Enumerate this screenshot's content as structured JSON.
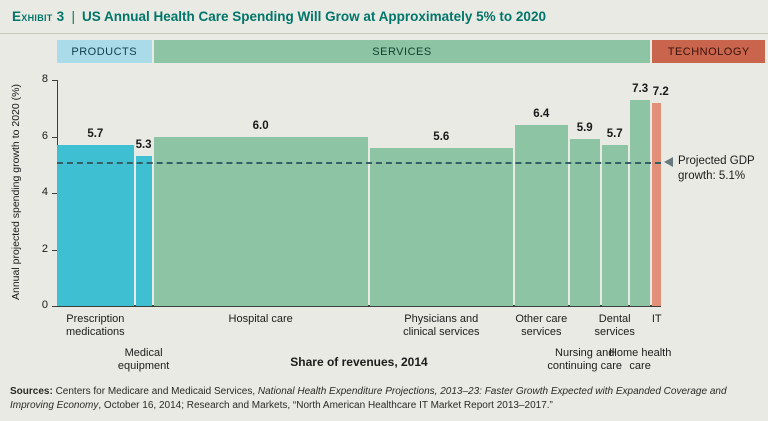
{
  "header": {
    "exhibit_label": "Exhibit 3",
    "separator": "|",
    "title": "US Annual Health Care Spending Will Grow at Approximately 5% to 2020"
  },
  "bands": [
    {
      "label": "PRODUCTS",
      "color": "#a9dbe9",
      "text_color": "#123c4a"
    },
    {
      "label": "SERVICES",
      "color": "#8cc4a4",
      "text_color": "#14402e"
    },
    {
      "label": "TECHNOLOGY",
      "color": "#c8654c",
      "text_color": "#3d120a"
    }
  ],
  "chart_data": {
    "type": "bar",
    "title": "US Annual Health Care Spending Will Grow at Approximately 5% to 2020",
    "ylabel": "Annual projected spending growth to 2020 (%)",
    "xlabel": "Share of revenues, 2014",
    "ylim": [
      0,
      8
    ],
    "yticks": [
      0,
      2,
      4,
      6,
      8
    ],
    "grid": false,
    "legend": "none",
    "reference_line": {
      "value": 5.1,
      "label_line1": "Projected GDP",
      "label_line2": "growth: 5.1%"
    },
    "colors": {
      "products": "#3fc0d2",
      "services": "#8cc4a4",
      "technology": "#e29078"
    },
    "bars": [
      {
        "category": "Prescription medications",
        "value": 5.7,
        "value_label": "5.7",
        "share_pct": 12.6,
        "group": "products",
        "label_row": 1,
        "label_width": 90
      },
      {
        "category": "Medical equipment",
        "value": 5.3,
        "value_label": "5.3",
        "share_pct": 2.6,
        "group": "products",
        "label_row": 2,
        "label_width": 70
      },
      {
        "category": "Hospital care",
        "value": 6.0,
        "value_label": "6.0",
        "share_pct": 35.2,
        "group": "services",
        "label_row": 1,
        "label_width": 120
      },
      {
        "category": "Physicians and clinical services",
        "value": 5.6,
        "value_label": "5.6",
        "share_pct": 23.5,
        "group": "services",
        "label_row": 1,
        "label_width": 95
      },
      {
        "category": "Other care services",
        "value": 6.4,
        "value_label": "6.4",
        "share_pct": 8.7,
        "group": "services",
        "label_row": 1,
        "label_width": 70
      },
      {
        "category": "Nursing and continuing care",
        "value": 5.9,
        "value_label": "5.9",
        "share_pct": 4.9,
        "group": "services",
        "label_row": 2,
        "label_width": 100
      },
      {
        "category": "Dental services",
        "value": 5.7,
        "value_label": "5.7",
        "share_pct": 4.3,
        "group": "services",
        "label_row": 1,
        "label_width": 60
      },
      {
        "category": "Home health care",
        "value": 7.3,
        "value_label": "7.3",
        "share_pct": 3.4,
        "group": "services",
        "label_row": 2,
        "label_width": 70
      },
      {
        "category": "IT",
        "value": 7.2,
        "value_label": "7.2",
        "share_pct": 1.4,
        "group": "technology",
        "label_row": 1,
        "label_width": 30,
        "value_dx": 4
      }
    ]
  },
  "sources": {
    "label": "Sources:",
    "text1": " Centers for Medicare and Medicaid Services, ",
    "italic1": "National Health Expenditure Projections, 2013–23: Faster Growth Expected with Expanded Coverage and Improving Economy",
    "text2": ", October 16, 2014; Research and Markets, “North American Healthcare IT Market Report 2013–2017.”"
  }
}
